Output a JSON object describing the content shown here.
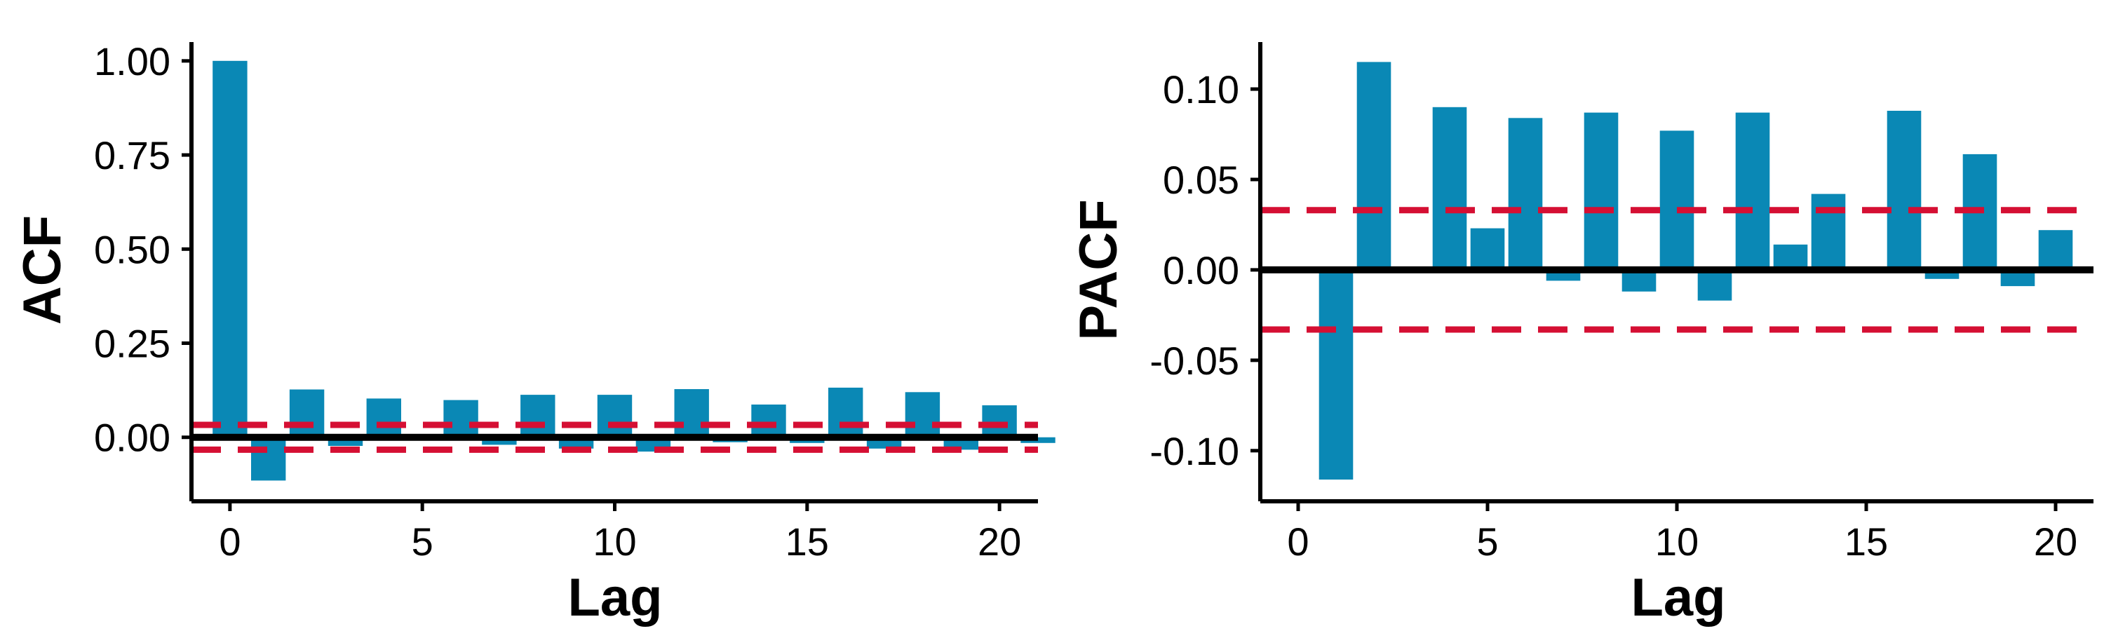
{
  "colors": {
    "bar": "#0a88b5",
    "confidence_line": "#d50f33",
    "axis": "#000000",
    "background": "#ffffff"
  },
  "chart_data": [
    {
      "type": "bar",
      "title": "",
      "xlabel": "Lag",
      "ylabel": "ACF",
      "x_ticks": [
        "0",
        "5",
        "10",
        "15",
        "20"
      ],
      "y_ticks": [
        "0.00",
        "0.25",
        "0.50",
        "0.75",
        "1.00"
      ],
      "xlim": [
        -1,
        21
      ],
      "ylim": [
        -0.17,
        1.05
      ],
      "confidence_bound": 0.033,
      "grid": false,
      "x": [
        0,
        1,
        2,
        3,
        4,
        5,
        6,
        7,
        8,
        9,
        10,
        11,
        12,
        13,
        14,
        15,
        16,
        17,
        18,
        19,
        20,
        21
      ],
      "values": [
        1.0,
        -0.115,
        0.127,
        -0.023,
        0.103,
        -0.007,
        0.099,
        -0.02,
        0.113,
        -0.03,
        0.113,
        -0.038,
        0.128,
        -0.013,
        0.087,
        -0.015,
        0.132,
        -0.03,
        0.12,
        -0.033,
        0.085,
        -0.015
      ]
    },
    {
      "type": "bar",
      "title": "",
      "xlabel": "Lag",
      "ylabel": "PACF",
      "x_ticks": [
        "0",
        "5",
        "10",
        "15",
        "20"
      ],
      "y_ticks": [
        "-0.10",
        "-0.05",
        "0.00",
        "0.05",
        "0.10"
      ],
      "xlim": [
        -1,
        21
      ],
      "ylim": [
        -0.128,
        0.126
      ],
      "confidence_bound": 0.033,
      "grid": false,
      "x": [
        1,
        2,
        3,
        4,
        5,
        6,
        7,
        8,
        9,
        10,
        11,
        12,
        13,
        14,
        15,
        16,
        17,
        18,
        19,
        20
      ],
      "values": [
        -0.116,
        0.115,
        -0.001,
        0.09,
        0.023,
        0.084,
        -0.006,
        0.087,
        -0.012,
        0.077,
        -0.017,
        0.087,
        0.014,
        0.042,
        0.0,
        0.088,
        -0.005,
        0.064,
        -0.009,
        0.022
      ]
    }
  ]
}
